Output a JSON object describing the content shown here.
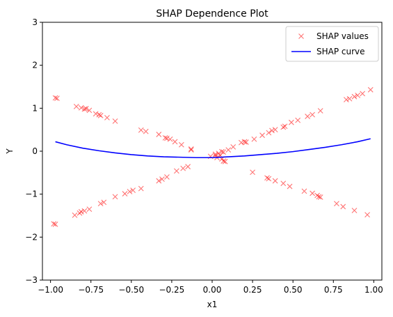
{
  "chart_data": {
    "type": "scatter",
    "title": "SHAP Dependence Plot",
    "xlabel": "x1",
    "ylabel": "Y",
    "xlim": [
      -1.05,
      1.05
    ],
    "ylim": [
      -3,
      3
    ],
    "xticks": [
      -1.0,
      -0.75,
      -0.5,
      -0.25,
      0.0,
      0.25,
      0.5,
      0.75,
      1.0
    ],
    "xtick_labels": [
      "−1.00",
      "−0.75",
      "−0.50",
      "−0.25",
      "0.00",
      "0.25",
      "0.50",
      "0.75",
      "1.00"
    ],
    "yticks": [
      -3,
      -2,
      -1,
      0,
      1,
      2,
      3
    ],
    "ytick_labels": [
      "−3",
      "−2",
      "−1",
      "0",
      "1",
      "2",
      "3"
    ],
    "grid": false,
    "legend_position": "top-right",
    "series": [
      {
        "name": "SHAP values",
        "kind": "scatter",
        "marker": "x",
        "color": "#ff0000",
        "opacity": 0.55,
        "points": [
          [
            -0.97,
            1.24
          ],
          [
            -0.96,
            1.23
          ],
          [
            -0.84,
            1.04
          ],
          [
            -0.81,
            1.01
          ],
          [
            -0.79,
            0.98
          ],
          [
            -0.78,
            0.99
          ],
          [
            -0.76,
            0.95
          ],
          [
            -0.72,
            0.87
          ],
          [
            -0.7,
            0.85
          ],
          [
            -0.69,
            0.83
          ],
          [
            -0.65,
            0.78
          ],
          [
            -0.6,
            0.7
          ],
          [
            -0.44,
            0.49
          ],
          [
            -0.41,
            0.46
          ],
          [
            -0.33,
            0.39
          ],
          [
            -0.29,
            0.31
          ],
          [
            -0.28,
            0.3
          ],
          [
            -0.26,
            0.28
          ],
          [
            -0.23,
            0.22
          ],
          [
            -0.19,
            0.15
          ],
          [
            -0.13,
            0.05
          ],
          [
            -0.13,
            0.03
          ],
          [
            0.02,
            -0.1
          ],
          [
            0.03,
            -0.15
          ],
          [
            0.05,
            -0.1
          ],
          [
            0.06,
            -0.18
          ],
          [
            0.07,
            -0.23
          ],
          [
            0.08,
            -0.24
          ],
          [
            -0.97,
            -1.7
          ],
          [
            -0.98,
            -1.69
          ],
          [
            -0.85,
            -1.49
          ],
          [
            -0.82,
            -1.44
          ],
          [
            -0.81,
            -1.41
          ],
          [
            -0.79,
            -1.39
          ],
          [
            -0.76,
            -1.35
          ],
          [
            -0.69,
            -1.22
          ],
          [
            -0.67,
            -1.19
          ],
          [
            -0.6,
            -1.06
          ],
          [
            -0.54,
            -0.99
          ],
          [
            -0.51,
            -0.94
          ],
          [
            -0.49,
            -0.91
          ],
          [
            -0.44,
            -0.87
          ],
          [
            -0.33,
            -0.69
          ],
          [
            -0.31,
            -0.65
          ],
          [
            -0.28,
            -0.6
          ],
          [
            -0.22,
            -0.46
          ],
          [
            -0.18,
            -0.4
          ],
          [
            -0.15,
            -0.36
          ],
          [
            -0.01,
            -0.12
          ],
          [
            0.02,
            -0.07
          ],
          [
            0.04,
            -0.05
          ],
          [
            0.06,
            -0.01
          ],
          [
            0.07,
            -0.02
          ],
          [
            0.1,
            0.03
          ],
          [
            0.13,
            0.1
          ],
          [
            0.18,
            0.2
          ],
          [
            0.2,
            0.22
          ],
          [
            0.21,
            0.21
          ],
          [
            0.26,
            0.28
          ],
          [
            0.31,
            0.37
          ],
          [
            0.35,
            0.43
          ],
          [
            0.37,
            0.48
          ],
          [
            0.39,
            0.5
          ],
          [
            0.44,
            0.56
          ],
          [
            0.45,
            0.58
          ],
          [
            0.49,
            0.67
          ],
          [
            0.53,
            0.72
          ],
          [
            0.59,
            0.81
          ],
          [
            0.62,
            0.85
          ],
          [
            0.67,
            0.94
          ],
          [
            0.83,
            1.2
          ],
          [
            0.85,
            1.22
          ],
          [
            0.88,
            1.27
          ],
          [
            0.9,
            1.3
          ],
          [
            0.93,
            1.34
          ],
          [
            0.98,
            1.43
          ],
          [
            0.25,
            -0.49
          ],
          [
            0.34,
            -0.62
          ],
          [
            0.35,
            -0.64
          ],
          [
            0.39,
            -0.69
          ],
          [
            0.44,
            -0.75
          ],
          [
            0.48,
            -0.82
          ],
          [
            0.57,
            -0.93
          ],
          [
            0.62,
            -0.98
          ],
          [
            0.65,
            -1.03
          ],
          [
            0.66,
            -1.06
          ],
          [
            0.67,
            -1.07
          ],
          [
            0.77,
            -1.22
          ],
          [
            0.81,
            -1.29
          ],
          [
            0.88,
            -1.38
          ],
          [
            0.96,
            -1.48
          ]
        ]
      },
      {
        "name": "SHAP curve",
        "kind": "line",
        "color": "#0000ff",
        "points": [
          [
            -0.97,
            0.22
          ],
          [
            -0.9,
            0.15
          ],
          [
            -0.8,
            0.07
          ],
          [
            -0.7,
            0.01
          ],
          [
            -0.6,
            -0.04
          ],
          [
            -0.5,
            -0.08
          ],
          [
            -0.4,
            -0.11
          ],
          [
            -0.3,
            -0.13
          ],
          [
            -0.2,
            -0.14
          ],
          [
            -0.1,
            -0.15
          ],
          [
            0.0,
            -0.15
          ],
          [
            0.1,
            -0.13
          ],
          [
            0.2,
            -0.11
          ],
          [
            0.3,
            -0.08
          ],
          [
            0.4,
            -0.05
          ],
          [
            0.5,
            -0.01
          ],
          [
            0.6,
            0.04
          ],
          [
            0.7,
            0.09
          ],
          [
            0.8,
            0.15
          ],
          [
            0.9,
            0.22
          ],
          [
            0.98,
            0.29
          ]
        ]
      }
    ]
  }
}
